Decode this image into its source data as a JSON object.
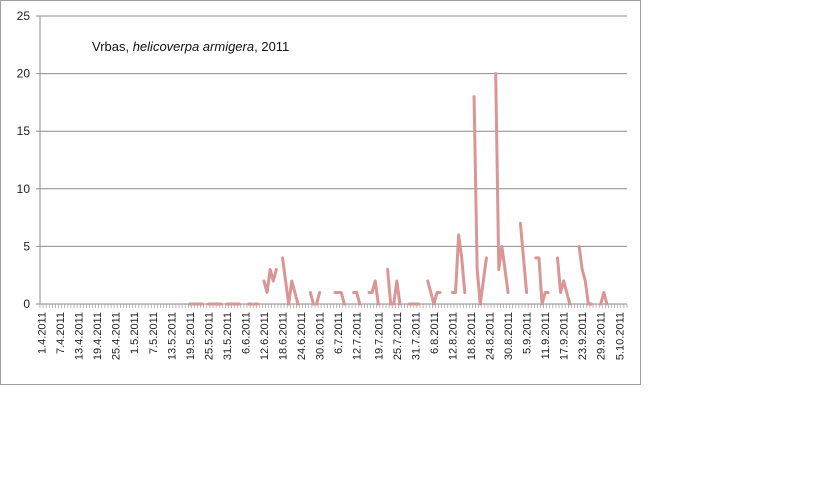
{
  "chart_data": {
    "type": "line",
    "title": {
      "prefix": "Vrbas, ",
      "species": "helicoverpa armigera",
      "suffix": ", 2011"
    },
    "xlabel": "",
    "ylabel": "",
    "ylim": [
      0,
      25
    ],
    "yticks": [
      0,
      5,
      10,
      15,
      20,
      25
    ],
    "grid": true,
    "legend": "none",
    "line_color": "#d99694",
    "x_tick_labels": [
      "1.4.2011",
      "7.4.2011",
      "13.4.2011",
      "19.4.2011",
      "25.4.2011",
      "1.5.2011",
      "7.5.2011",
      "13.5.2011",
      "19.5.2011",
      "25.5.2011",
      "31.5.2011",
      "6.6.2011",
      "12.6.2011",
      "18.6.2011",
      "24.6.2011",
      "30.6.2011",
      "6.7.2011",
      "12.7.2011",
      "19.7.2011",
      "25.7.2011",
      "31.7.2011",
      "6.8.2011",
      "12.8.2011",
      "18.8.2011",
      "24.8.2011",
      "30.8.2011",
      "5.9.2011",
      "11.9.2011",
      "17.9.2011",
      "23.9.2011",
      "29.9.2011",
      "5.10.2011"
    ],
    "series": [
      {
        "segments": [
          [
            [
              "19.5.2011",
              0
            ],
            [
              "21.5.2011",
              0
            ],
            [
              "23.5.2011",
              0
            ]
          ],
          [
            [
              "25.5.2011",
              0
            ],
            [
              "27.5.2011",
              0
            ],
            [
              "29.5.2011",
              0
            ]
          ],
          [
            [
              "31.5.2011",
              0
            ],
            [
              "2.6.2011",
              0
            ],
            [
              "4.6.2011",
              0
            ]
          ],
          [
            [
              "7.6.2011",
              0
            ],
            [
              "8.6.2011",
              0
            ]
          ],
          [
            [
              "9.6.2011",
              0
            ],
            [
              "10.6.2011",
              0
            ]
          ],
          [
            [
              "12.6.2011",
              2
            ],
            [
              "13.6.2011",
              1
            ],
            [
              "14.6.2011",
              3
            ],
            [
              "15.6.2011",
              2
            ],
            [
              "16.6.2011",
              3
            ]
          ],
          [
            [
              "18.6.2011",
              4
            ],
            [
              "19.6.2011",
              2
            ],
            [
              "20.6.2011",
              0
            ],
            [
              "21.6.2011",
              2
            ],
            [
              "22.6.2011",
              1
            ],
            [
              "23.6.2011",
              0
            ]
          ],
          [
            [
              "27.6.2011",
              1
            ],
            [
              "28.6.2011",
              0
            ]
          ],
          [
            [
              "29.6.2011",
              0
            ],
            [
              "30.6.2011",
              1
            ]
          ],
          [
            [
              "5.7.2011",
              1
            ],
            [
              "6.7.2011",
              1
            ],
            [
              "7.7.2011",
              1
            ],
            [
              "8.7.2011",
              0
            ]
          ],
          [
            [
              "11.7.2011",
              1
            ],
            [
              "12.7.2011",
              1
            ],
            [
              "13.7.2011",
              0
            ]
          ],
          [
            [
              "16.7.2011",
              1
            ],
            [
              "17.7.2011",
              1
            ],
            [
              "18.7.2011",
              2
            ],
            [
              "19.7.2011",
              0
            ]
          ],
          [
            [
              "22.7.2011",
              3
            ],
            [
              "23.7.2011",
              0
            ],
            [
              "24.7.2011",
              0
            ],
            [
              "25.7.2011",
              2
            ],
            [
              "26.7.2011",
              0
            ]
          ],
          [
            [
              "29.7.2011",
              0
            ],
            [
              "30.7.2011",
              0
            ],
            [
              "31.7.2011",
              0
            ],
            [
              "1.8.2011",
              0
            ]
          ],
          [
            [
              "4.8.2011",
              2
            ],
            [
              "5.8.2011",
              1
            ],
            [
              "6.8.2011",
              0
            ],
            [
              "7.8.2011",
              1
            ],
            [
              "8.8.2011",
              1
            ]
          ],
          [
            [
              "12.8.2011",
              1
            ],
            [
              "13.8.2011",
              1
            ],
            [
              "14.8.2011",
              6
            ],
            [
              "15.8.2011",
              4
            ],
            [
              "16.8.2011",
              1
            ]
          ],
          [
            [
              "19.8.2011",
              18
            ],
            [
              "20.8.2011",
              3
            ],
            [
              "21.8.2011",
              0
            ],
            [
              "22.8.2011",
              2
            ],
            [
              "23.8.2011",
              4
            ]
          ],
          [
            [
              "26.8.2011",
              20
            ],
            [
              "27.8.2011",
              3
            ],
            [
              "28.8.2011",
              5
            ],
            [
              "29.8.2011",
              3
            ],
            [
              "30.8.2011",
              1
            ]
          ],
          [
            [
              "3.9.2011",
              7
            ],
            [
              "4.9.2011",
              4
            ],
            [
              "5.9.2011",
              1
            ]
          ],
          [
            [
              "8.9.2011",
              4
            ],
            [
              "9.9.2011",
              4
            ],
            [
              "10.9.2011",
              0
            ],
            [
              "11.9.2011",
              1
            ],
            [
              "12.9.2011",
              1
            ]
          ],
          [
            [
              "15.9.2011",
              4
            ],
            [
              "16.9.2011",
              1
            ],
            [
              "17.9.2011",
              2
            ],
            [
              "18.9.2011",
              1
            ],
            [
              "19.9.2011",
              0
            ]
          ],
          [
            [
              "22.9.2011",
              5
            ],
            [
              "23.9.2011",
              3
            ],
            [
              "24.9.2011",
              2
            ],
            [
              "25.9.2011",
              0
            ],
            [
              "26.9.2011",
              0
            ]
          ],
          [
            [
              "29.9.2011",
              0
            ],
            [
              "30.9.2011",
              1
            ],
            [
              "1.10.2011",
              0
            ]
          ]
        ]
      }
    ]
  }
}
